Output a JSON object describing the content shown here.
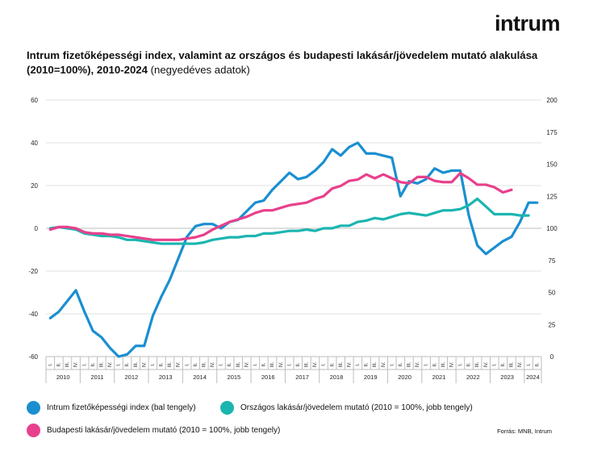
{
  "logo": "intrum",
  "title": {
    "main": "Intrum fizetőképességi index, valamint az országos és budapesti lakásár/jövedelem mutató alakulása (2010=100%), 2010-2024",
    "sub": " (negyedéves adatok)"
  },
  "source": "Forrás: MNB, Intrum",
  "chart_data": {
    "type": "line",
    "quarter_labels": [
      "I.",
      "II.",
      "III.",
      "IV.",
      "I.",
      "II.",
      "III.",
      "IV.",
      "I.",
      "II.",
      "III.",
      "IV.",
      "I.",
      "II.",
      "III.",
      "IV.",
      "I.",
      "II.",
      "III.",
      "IV.",
      "I.",
      "II.",
      "III.",
      "IV.",
      "I.",
      "II.",
      "III.",
      "IV.",
      "I.",
      "II.",
      "III.",
      "IV.",
      "I.",
      "II.",
      "III.",
      "IV.",
      "I.",
      "II.",
      "III.",
      "IV.",
      "I.",
      "II.",
      "III.",
      "IV.",
      "I.",
      "II.",
      "III.",
      "IV.",
      "I.",
      "II.",
      "III.",
      "IV.",
      "I.",
      "II.",
      "III.",
      "IV.",
      "I.",
      "II."
    ],
    "year_labels": [
      "2010",
      "2011",
      "2012",
      "2013",
      "2014",
      "2015",
      "2016",
      "2017",
      "2018",
      "2019",
      "2020",
      "2021",
      "2022",
      "2023",
      "2024"
    ],
    "y_left": {
      "min": -60,
      "max": 60,
      "ticks": [
        -60,
        -40,
        -20,
        0,
        20,
        40,
        60
      ]
    },
    "y_right": {
      "min": 0,
      "max": 200,
      "ticks": [
        0,
        25,
        50,
        75,
        100,
        125,
        150,
        175,
        200
      ]
    },
    "grid": true,
    "series": [
      {
        "name": "Intrum fizetőképességi index (bal tengely)",
        "axis": "left",
        "color": "#1a8fd0",
        "values": [
          -42,
          -39,
          -34,
          -29,
          -39,
          -48,
          -51,
          -56,
          -60,
          -59,
          -55,
          -55,
          -41,
          -32,
          -24,
          -14,
          -4,
          1,
          2,
          2,
          0,
          3,
          4,
          8,
          12,
          13,
          18,
          22,
          26,
          23,
          24,
          27,
          31,
          37,
          34,
          38,
          40,
          35,
          35,
          34,
          33,
          15,
          22,
          21,
          23,
          28,
          26,
          27,
          27,
          6,
          -8,
          -12,
          -9,
          -6,
          -4,
          3,
          12,
          12
        ]
      },
      {
        "name": "Országos lakásár/jövedelem mutató (2010 = 100%, jobb tengely)",
        "axis": "right",
        "color": "#1bb5b0",
        "values": [
          100,
          101,
          100,
          99,
          96,
          95,
          94,
          94,
          93,
          91,
          91,
          90,
          89,
          88,
          88,
          88,
          88,
          88,
          89,
          91,
          92,
          93,
          93,
          94,
          94,
          96,
          96,
          97,
          98,
          98,
          99,
          98,
          100,
          100,
          102,
          102,
          105,
          106,
          108,
          107,
          109,
          111,
          112,
          111,
          110,
          112,
          114,
          114,
          115,
          118,
          123,
          117,
          111,
          111,
          111,
          110,
          110,
          null
        ]
      },
      {
        "name": "Budapesti lakásár/jövedelem mutató (2010 = 100%, jobb tengely)",
        "axis": "right",
        "color": "#e8408c",
        "values": [
          99,
          101,
          101,
          100,
          97,
          96,
          96,
          95,
          95,
          94,
          93,
          92,
          91,
          91,
          91,
          91,
          92,
          93,
          95,
          99,
          102,
          105,
          107,
          109,
          112,
          114,
          114,
          116,
          118,
          119,
          120,
          123,
          125,
          131,
          133,
          137,
          138,
          142,
          139,
          142,
          139,
          136,
          135,
          140,
          140,
          137,
          136,
          136,
          143,
          139,
          134,
          134,
          132,
          128,
          130,
          null,
          null,
          null
        ]
      }
    ]
  },
  "legend": [
    {
      "label": "Intrum fizetőképességi index (bal tengely)",
      "color": "#1a8fd0"
    },
    {
      "label": "Országos lakásár/jövedelem mutató (2010 = 100%, jobb tengely)",
      "color": "#1bb5b0"
    },
    {
      "label": "Budapesti lakásár/jövedelem mutató (2010 = 100%, jobb tengely)",
      "color": "#e8408c"
    }
  ]
}
